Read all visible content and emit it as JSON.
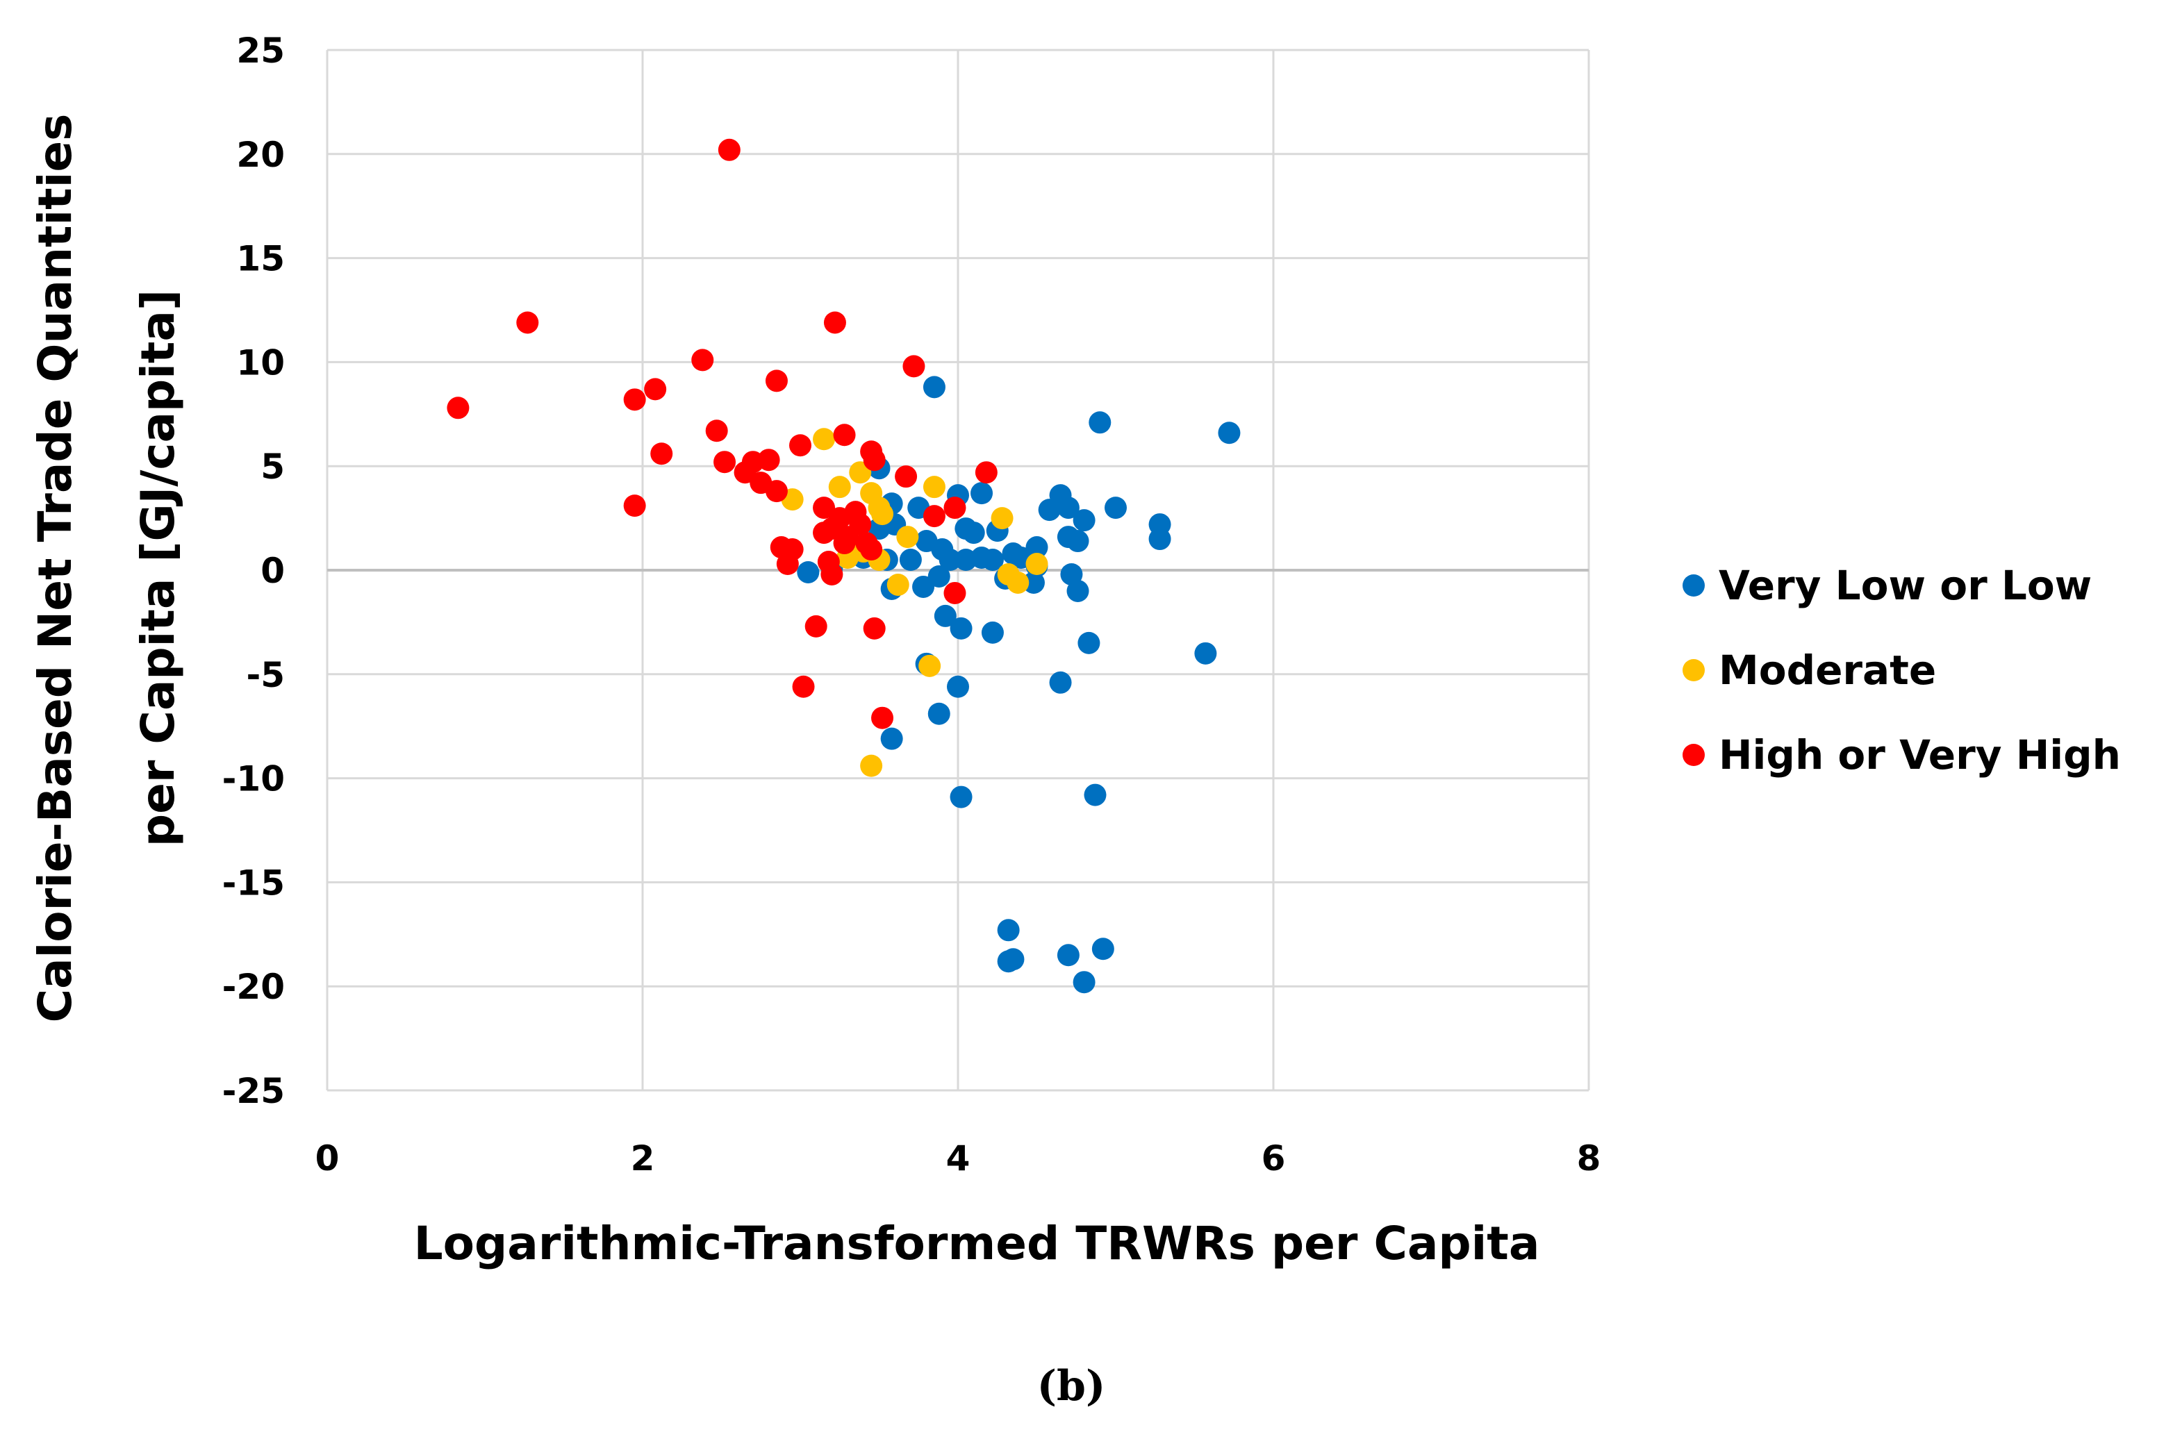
{
  "chart_data": {
    "type": "scatter",
    "title": "",
    "xlabel": "Logarithmic-Transformed TRWRs per Capita",
    "ylabel_lines": [
      "Calorie-Based Net Trade Quantities",
      "per Capita [GJ/capita]"
    ],
    "xlim": [
      0,
      8
    ],
    "ylim": [
      -25,
      25
    ],
    "xticks": [
      0,
      2,
      4,
      6,
      8
    ],
    "yticks": [
      25,
      20,
      15,
      10,
      5,
      0,
      -5,
      -10,
      -15,
      -20,
      -25
    ],
    "grid": true,
    "legend_position": "right",
    "caption": "(b)",
    "series": [
      {
        "name": "Very Low or Low",
        "color": "#0070C0",
        "points": [
          [
            3.85,
            8.8
          ],
          [
            4.9,
            7.1
          ],
          [
            5.72,
            6.6
          ],
          [
            3.5,
            4.9
          ],
          [
            4.0,
            3.6
          ],
          [
            4.15,
            3.7
          ],
          [
            4.65,
            3.6
          ],
          [
            4.58,
            2.9
          ],
          [
            4.7,
            3.0
          ],
          [
            5.0,
            3.0
          ],
          [
            3.58,
            3.2
          ],
          [
            3.6,
            2.2
          ],
          [
            3.75,
            3.0
          ],
          [
            3.5,
            2.0
          ],
          [
            4.05,
            2.0
          ],
          [
            4.1,
            1.8
          ],
          [
            4.25,
            1.9
          ],
          [
            4.8,
            2.4
          ],
          [
            5.28,
            2.2
          ],
          [
            5.28,
            1.5
          ],
          [
            4.7,
            1.6
          ],
          [
            4.76,
            1.4
          ],
          [
            4.5,
            1.1
          ],
          [
            3.8,
            1.4
          ],
          [
            3.9,
            1.0
          ],
          [
            3.95,
            0.5
          ],
          [
            3.4,
            0.6
          ],
          [
            3.55,
            0.5
          ],
          [
            3.7,
            0.5
          ],
          [
            4.05,
            0.5
          ],
          [
            4.15,
            0.6
          ],
          [
            4.22,
            0.5
          ],
          [
            4.35,
            0.8
          ],
          [
            4.4,
            0.6
          ],
          [
            4.5,
            0.2
          ],
          [
            3.05,
            -0.1
          ],
          [
            3.2,
            0.1
          ],
          [
            3.58,
            -0.9
          ],
          [
            3.78,
            -0.8
          ],
          [
            3.88,
            -0.3
          ],
          [
            4.3,
            -0.4
          ],
          [
            4.48,
            -0.6
          ],
          [
            4.72,
            -0.2
          ],
          [
            4.76,
            -1.0
          ],
          [
            3.92,
            -2.2
          ],
          [
            4.02,
            -2.8
          ],
          [
            4.22,
            -3.0
          ],
          [
            4.83,
            -3.5
          ],
          [
            5.57,
            -4.0
          ],
          [
            3.8,
            -4.5
          ],
          [
            4.65,
            -5.4
          ],
          [
            4.0,
            -5.6
          ],
          [
            3.88,
            -6.9
          ],
          [
            3.58,
            -8.1
          ],
          [
            4.02,
            -10.9
          ],
          [
            4.87,
            -10.8
          ],
          [
            4.32,
            -17.3
          ],
          [
            4.32,
            -18.8
          ],
          [
            4.35,
            -18.7
          ],
          [
            4.7,
            -18.5
          ],
          [
            4.92,
            -18.2
          ],
          [
            4.8,
            -19.8
          ]
        ]
      },
      {
        "name": "Moderate",
        "color": "#FFC000",
        "points": [
          [
            3.15,
            6.3
          ],
          [
            3.38,
            4.7
          ],
          [
            3.25,
            4.0
          ],
          [
            3.45,
            3.7
          ],
          [
            3.5,
            3.0
          ],
          [
            2.95,
            3.4
          ],
          [
            3.85,
            4.0
          ],
          [
            3.52,
            2.7
          ],
          [
            3.68,
            1.6
          ],
          [
            3.3,
            0.6
          ],
          [
            3.5,
            0.5
          ],
          [
            3.4,
            0.9
          ],
          [
            4.28,
            2.5
          ],
          [
            4.32,
            -0.2
          ],
          [
            4.38,
            -0.6
          ],
          [
            4.5,
            0.3
          ],
          [
            3.62,
            -0.7
          ],
          [
            3.82,
            -4.6
          ],
          [
            3.45,
            -9.4
          ]
        ]
      },
      {
        "name": "High or Very High",
        "color": "#FF0000",
        "points": [
          [
            2.55,
            20.2
          ],
          [
            1.27,
            11.9
          ],
          [
            3.22,
            11.9
          ],
          [
            2.38,
            10.1
          ],
          [
            3.72,
            9.8
          ],
          [
            2.85,
            9.1
          ],
          [
            2.08,
            8.7
          ],
          [
            1.95,
            8.2
          ],
          [
            0.83,
            7.8
          ],
          [
            2.47,
            6.7
          ],
          [
            3.28,
            6.5
          ],
          [
            3.0,
            6.0
          ],
          [
            2.12,
            5.6
          ],
          [
            3.45,
            5.7
          ],
          [
            3.47,
            5.3
          ],
          [
            2.52,
            5.2
          ],
          [
            2.7,
            5.2
          ],
          [
            2.8,
            5.3
          ],
          [
            2.65,
            4.7
          ],
          [
            2.75,
            4.2
          ],
          [
            3.67,
            4.5
          ],
          [
            4.18,
            4.7
          ],
          [
            2.85,
            3.8
          ],
          [
            1.95,
            3.1
          ],
          [
            3.15,
            3.0
          ],
          [
            3.25,
            2.5
          ],
          [
            3.35,
            2.8
          ],
          [
            3.38,
            2.2
          ],
          [
            3.85,
            2.6
          ],
          [
            3.98,
            3.0
          ],
          [
            3.2,
            2.0
          ],
          [
            3.15,
            1.8
          ],
          [
            3.3,
            1.6
          ],
          [
            3.28,
            1.3
          ],
          [
            3.42,
            1.3
          ],
          [
            2.88,
            1.1
          ],
          [
            2.95,
            1.0
          ],
          [
            3.45,
            1.0
          ],
          [
            2.92,
            0.3
          ],
          [
            3.18,
            0.4
          ],
          [
            3.2,
            -0.2
          ],
          [
            3.98,
            -1.1
          ],
          [
            3.1,
            -2.7
          ],
          [
            3.47,
            -2.8
          ],
          [
            3.02,
            -5.6
          ],
          [
            3.52,
            -7.1
          ]
        ]
      }
    ]
  }
}
